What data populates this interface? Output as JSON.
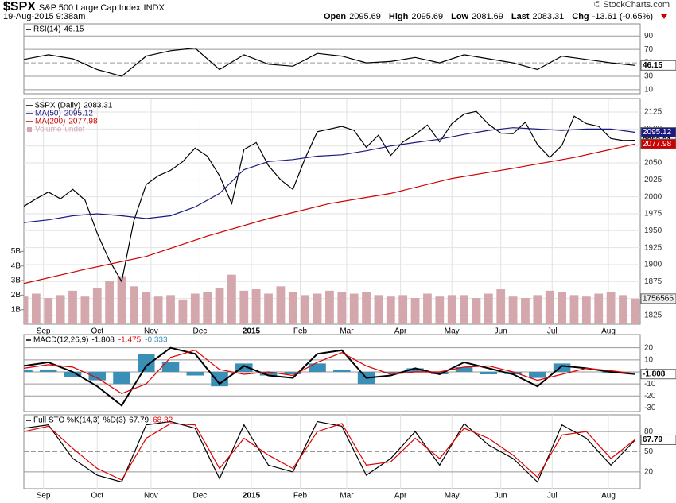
{
  "header": {
    "symbol": "$SPX",
    "name": "S&P 500 Large Cap Index",
    "exchange": "INDX",
    "timestamp": "19-Aug-2015 9:38am",
    "source": "© StockCharts.com",
    "quote": [
      {
        "label": "Open",
        "value": 2095.69
      },
      {
        "label": "High",
        "value": 2095.69
      },
      {
        "label": "Low",
        "value": 2081.69
      },
      {
        "label": "Last",
        "value": 2083.31
      },
      {
        "label": "Chg",
        "value": "-13.61 (-0.65%)"
      }
    ]
  },
  "chart_data": [
    {
      "type": "line",
      "xlim": [
        0,
        252
      ],
      "ylim": [
        4,
        108
      ],
      "yticks": [
        10,
        30,
        50,
        70,
        90
      ],
      "grid": true,
      "legend_layout": "row",
      "series": [
        {
          "name": "RSI(14)",
          "color": "#000000",
          "end_tag": true,
          "x": [
            0,
            10,
            20,
            30,
            40,
            50,
            60,
            70,
            80,
            90,
            100,
            110,
            120,
            130,
            140,
            150,
            160,
            170,
            180,
            190,
            200,
            210,
            220,
            230,
            240,
            250
          ],
          "values": [
            55,
            62,
            56,
            40,
            30,
            60,
            68,
            72,
            40,
            62,
            48,
            45,
            64,
            60,
            50,
            52,
            58,
            50,
            62,
            56,
            50,
            40,
            60,
            55,
            50,
            46.15
          ]
        }
      ]
    },
    {
      "type": "line",
      "xlim": [
        0,
        252
      ],
      "ylim": [
        1812,
        2145
      ],
      "yticks": [
        1825,
        1850,
        1875,
        1900,
        1925,
        1950,
        1975,
        2000,
        2025,
        2050,
        2075,
        2100,
        2125
      ],
      "y2lim": [
        0,
        15500000
      ],
      "y2ticks": [
        {
          "value": 1000000,
          "label": "1B"
        },
        {
          "value": 2000000,
          "label": "2B"
        },
        {
          "value": 3000000,
          "label": "3B"
        },
        {
          "value": 4000000,
          "label": "4B"
        },
        {
          "value": 5000000,
          "label": "5B"
        }
      ],
      "xticks": [
        {
          "value": 8,
          "label": "Sep"
        },
        {
          "value": 30,
          "label": "Oct"
        },
        {
          "value": 52,
          "label": "Nov"
        },
        {
          "value": 72,
          "label": "Dec"
        },
        {
          "value": 93,
          "label": "2015"
        },
        {
          "value": 113,
          "label": "Feb"
        },
        {
          "value": 132,
          "label": "Mar"
        },
        {
          "value": 154,
          "label": "Apr"
        },
        {
          "value": 175,
          "label": "May"
        },
        {
          "value": 195,
          "label": "Jun"
        },
        {
          "value": 216,
          "label": "Jul"
        },
        {
          "value": 239,
          "label": "Aug"
        }
      ],
      "grid": true,
      "legend_layout": "column",
      "series": [
        {
          "name": "Volume",
          "legend_value": "undef",
          "axis": "y2",
          "bars": true,
          "color": "#d4a7ad",
          "end_tag": true,
          "x": [
            0,
            5,
            10,
            15,
            20,
            25,
            30,
            35,
            40,
            45,
            50,
            55,
            60,
            65,
            70,
            75,
            80,
            85,
            90,
            95,
            100,
            105,
            110,
            115,
            120,
            125,
            130,
            135,
            140,
            145,
            150,
            155,
            160,
            165,
            170,
            175,
            180,
            185,
            190,
            195,
            200,
            205,
            210,
            215,
            220,
            225,
            230,
            235,
            240,
            245,
            250
          ],
          "values": [
            1900000,
            2100000,
            1800000,
            2000000,
            2300000,
            1900000,
            2500000,
            3000000,
            3300000,
            2600000,
            2200000,
            1900000,
            2000000,
            1700000,
            2100000,
            2200000,
            2500000,
            3400000,
            2300000,
            2400000,
            2100000,
            2600000,
            2200000,
            2000000,
            2100000,
            2300000,
            2200000,
            2100000,
            2200000,
            2000000,
            1900000,
            2000000,
            1800000,
            2100000,
            1900000,
            2000000,
            2000000,
            1800000,
            2100000,
            2400000,
            1900000,
            1800000,
            2000000,
            2300000,
            2200000,
            2000000,
            1900000,
            2100000,
            2200000,
            2000000,
            1756566
          ]
        },
        {
          "name": "$SPX (Daily)",
          "color": "#000000",
          "end_tag": true,
          "x": [
            0,
            5,
            10,
            15,
            20,
            25,
            30,
            35,
            40,
            45,
            50,
            55,
            60,
            65,
            70,
            75,
            80,
            85,
            90,
            95,
            100,
            105,
            110,
            115,
            120,
            125,
            130,
            135,
            140,
            145,
            150,
            155,
            160,
            165,
            170,
            175,
            180,
            185,
            190,
            195,
            200,
            205,
            210,
            215,
            220,
            225,
            230,
            235,
            240,
            245,
            250
          ],
          "values": [
            1986,
            1997,
            2007,
            1997,
            2011,
            1995,
            1946,
            1906,
            1875,
            1965,
            2018,
            2031,
            2039,
            2052,
            2072,
            2060,
            2031,
            1990,
            2070,
            2080,
            2046,
            2025,
            2011,
            2057,
            2096,
            2100,
            2104,
            2098,
            2073,
            2091,
            2061,
            2081,
            2092,
            2106,
            2081,
            2108,
            2122,
            2126,
            2107,
            2094,
            2093,
            2110,
            2077,
            2058,
            2076,
            2119,
            2108,
            2104,
            2086,
            2083,
            2083.31
          ]
        },
        {
          "name": "MA(50)",
          "color": "#1a1a80",
          "end_tag": true,
          "x": [
            0,
            10,
            20,
            30,
            40,
            50,
            60,
            70,
            80,
            90,
            100,
            110,
            120,
            130,
            140,
            150,
            160,
            170,
            180,
            190,
            200,
            210,
            220,
            230,
            240,
            250
          ],
          "values": [
            1962,
            1966,
            1972,
            1975,
            1972,
            1968,
            1972,
            1985,
            2005,
            2040,
            2052,
            2055,
            2060,
            2062,
            2068,
            2075,
            2080,
            2085,
            2092,
            2098,
            2102,
            2100,
            2098,
            2100,
            2100,
            2095.12
          ]
        },
        {
          "name": "MA(200)",
          "color": "#cc0000",
          "end_tag": true,
          "x": [
            0,
            25,
            50,
            75,
            100,
            125,
            150,
            175,
            200,
            225,
            250
          ],
          "values": [
            1872,
            1893,
            1912,
            1942,
            1968,
            1990,
            2005,
            2027,
            2042,
            2058,
            2077.98
          ]
        }
      ]
    },
    {
      "type": "line",
      "xlim": [
        0,
        252
      ],
      "ylim": [
        -33,
        31
      ],
      "yticks": [
        -30,
        -20,
        -10,
        0,
        10,
        20
      ],
      "grid": true,
      "legend_layout": "row",
      "series": [
        {
          "bars": true,
          "color": "#3a8fb7",
          "x": [
            0,
            10,
            20,
            30,
            40,
            50,
            60,
            70,
            80,
            90,
            100,
            110,
            120,
            130,
            140,
            150,
            160,
            170,
            180,
            190,
            200,
            210,
            220,
            230,
            240,
            250
          ],
          "values": [
            2,
            2,
            -4,
            -7,
            -10,
            15,
            8,
            -3,
            -12,
            7,
            -3,
            -2,
            7,
            2,
            -10,
            -1,
            3,
            -2,
            4,
            -2,
            -2,
            -5,
            7,
            0,
            -1,
            -0.333
          ]
        },
        {
          "name": "MACD(12,26,9)",
          "color": "#000000",
          "end_tag": true,
          "x": [
            0,
            10,
            20,
            30,
            40,
            50,
            60,
            70,
            80,
            90,
            100,
            110,
            120,
            130,
            140,
            150,
            160,
            170,
            180,
            190,
            200,
            210,
            220,
            230,
            240,
            250
          ],
          "values": [
            5,
            8,
            0,
            -12,
            -28,
            5,
            20,
            15,
            -10,
            5,
            -3,
            -5,
            15,
            18,
            -5,
            -3,
            3,
            -2,
            8,
            3,
            -2,
            -12,
            5,
            3,
            0,
            -1.808
          ]
        },
        {
          "color": "#e00000",
          "x": [
            0,
            10,
            20,
            30,
            40,
            50,
            60,
            70,
            80,
            90,
            100,
            110,
            120,
            130,
            140,
            150,
            160,
            170,
            180,
            190,
            200,
            210,
            220,
            230,
            240,
            250
          ],
          "values": [
            3,
            6,
            4,
            -5,
            -18,
            -10,
            12,
            18,
            2,
            -2,
            0,
            -3,
            8,
            16,
            5,
            -2,
            0,
            0,
            4,
            5,
            0,
            -7,
            -2,
            3,
            1,
            -1.475
          ]
        }
      ]
    },
    {
      "type": "line",
      "xlim": [
        0,
        252
      ],
      "ylim": [
        -5,
        105
      ],
      "yticks": [
        20,
        50,
        80
      ],
      "grid": true,
      "legend_layout": "row",
      "xticks": [
        {
          "value": 8,
          "label": "Sep"
        },
        {
          "value": 30,
          "label": "Oct"
        },
        {
          "value": 52,
          "label": "Nov"
        },
        {
          "value": 72,
          "label": "Dec"
        },
        {
          "value": 93,
          "label": "2015"
        },
        {
          "value": 113,
          "label": "Feb"
        },
        {
          "value": 132,
          "label": "Mar"
        },
        {
          "value": 154,
          "label": "Apr"
        },
        {
          "value": 175,
          "label": "May"
        },
        {
          "value": 195,
          "label": "Jun"
        },
        {
          "value": 216,
          "label": "Jul"
        },
        {
          "value": 239,
          "label": "Aug"
        }
      ],
      "series": [
        {
          "name": "Full STO %K(14,3)",
          "color": "#000000",
          "end_tag": true,
          "x": [
            0,
            10,
            20,
            30,
            40,
            50,
            60,
            70,
            80,
            90,
            100,
            110,
            120,
            130,
            140,
            150,
            160,
            170,
            180,
            190,
            200,
            210,
            220,
            230,
            240,
            250
          ],
          "values": [
            85,
            90,
            40,
            15,
            5,
            90,
            95,
            85,
            10,
            90,
            30,
            20,
            95,
            88,
            15,
            40,
            80,
            30,
            92,
            60,
            40,
            5,
            90,
            70,
            30,
            67.79
          ]
        },
        {
          "name": "%D(3)",
          "color": "#e00000",
          "x": [
            0,
            10,
            20,
            30,
            40,
            50,
            60,
            70,
            80,
            90,
            100,
            110,
            120,
            130,
            140,
            150,
            160,
            170,
            180,
            190,
            200,
            210,
            220,
            230,
            240,
            250
          ],
          "values": [
            80,
            88,
            55,
            25,
            8,
            70,
            92,
            90,
            25,
            70,
            45,
            25,
            80,
            92,
            30,
            35,
            70,
            40,
            85,
            70,
            45,
            12,
            75,
            80,
            40,
            68.32
          ]
        }
      ]
    }
  ]
}
